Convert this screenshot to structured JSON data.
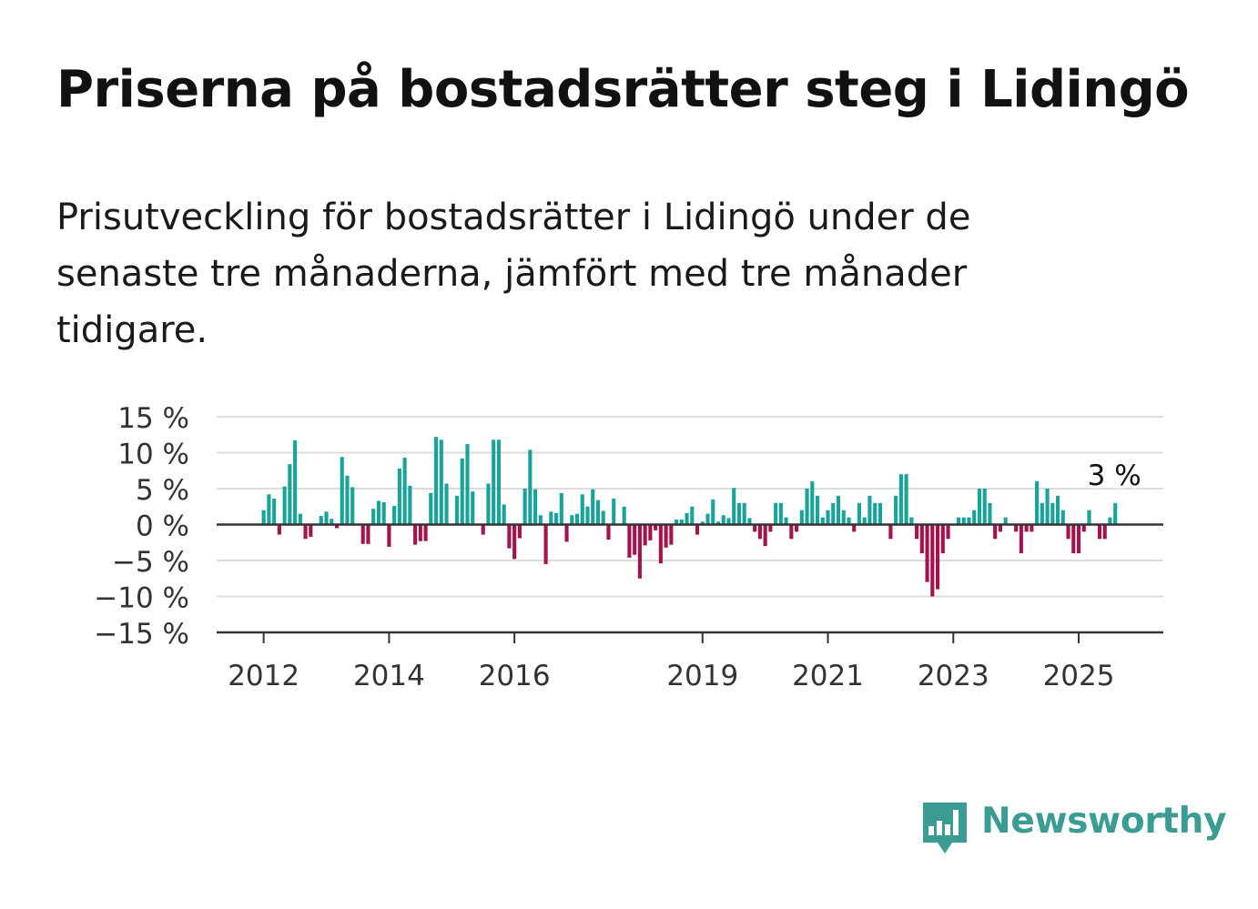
{
  "title": "Priserna på bostadsrätter steg i Lidingö",
  "subtitle": "Prisutveckling för bostadsrätter i Lidingö under de senaste tre månaderna, jämfört med tre månader tidigare.",
  "brand": {
    "name": "Newsworthy",
    "color": "#3b9c93"
  },
  "colors": {
    "positive": "#1aa39a",
    "negative": "#a3134d",
    "grid": "#dddddd",
    "axis": "#333333"
  },
  "chart_data": {
    "type": "bar",
    "y_tick_labels": [
      "15 %",
      "10 %",
      "5 %",
      "0 %",
      "−5 %",
      "−10 %",
      "−15 %"
    ],
    "y_ticks": [
      15,
      10,
      5,
      0,
      -5,
      -10,
      -15
    ],
    "ylim": [
      -15,
      15
    ],
    "x_tick_labels": [
      "2012",
      "2014",
      "2016",
      "2019",
      "2021",
      "2023",
      "2025"
    ],
    "x_ticks": [
      2012,
      2014,
      2016,
      2019,
      2021,
      2023,
      2025
    ],
    "xlim": [
      2011.25,
      2026.35
    ],
    "grid": true,
    "last_label": "3 %",
    "start_year": 2012,
    "months_per_bar": 1,
    "values": [
      2.0,
      4.2,
      3.6,
      -1.4,
      5.3,
      8.4,
      11.7,
      1.5,
      -2.0,
      -1.7,
      0,
      1.2,
      1.8,
      0.8,
      -0.5,
      9.4,
      6.8,
      5.2,
      0,
      -2.7,
      -2.7,
      2.2,
      3.3,
      3.1,
      -3.1,
      2.6,
      7.8,
      9.3,
      5.4,
      -2.8,
      -2.3,
      -2.3,
      4.4,
      12.2,
      11.8,
      5.7,
      0,
      4.0,
      9.2,
      11.2,
      4.6,
      0,
      -1.4,
      5.7,
      11.8,
      11.8,
      2.8,
      -3.3,
      -4.8,
      -1.9,
      5.0,
      10.4,
      4.9,
      1.3,
      -5.5,
      1.8,
      1.6,
      4.4,
      -2.4,
      1.3,
      1.5,
      4.2,
      2.5,
      4.9,
      3.4,
      1.9,
      -2.1,
      3.6,
      0,
      2.5,
      -4.6,
      -4.2,
      -7.5,
      -2.9,
      -2.2,
      -0.8,
      -5.4,
      -3.2,
      -2.8,
      0.7,
      0.7,
      1.6,
      2.5,
      -1.4,
      0.4,
      1.5,
      3.5,
      0.4,
      1.3,
      0.9,
      5.1,
      3.0,
      3.0,
      0.9,
      -1.0,
      -2.0,
      -3.0,
      -1.0,
      3.0,
      3.0,
      1.0,
      -2.0,
      -1.0,
      2.0,
      5.0,
      6.0,
      4.0,
      1.0,
      2.0,
      3.0,
      4.0,
      2.0,
      1.0,
      -1.0,
      3.0,
      1.0,
      4.0,
      3.0,
      3.0,
      0,
      -2.0,
      4.0,
      7.0,
      7.0,
      1.0,
      -2.0,
      -4.0,
      -8.0,
      -10.0,
      -9.0,
      -4.0,
      -2.0,
      0,
      1.0,
      1.0,
      1.0,
      2.0,
      5.0,
      5.0,
      3.0,
      -2.0,
      -1.0,
      1.0,
      0,
      -1.0,
      -4.0,
      -1.0,
      -1.0,
      6.0,
      3.0,
      5.0,
      3.0,
      4.0,
      2.0,
      -2.0,
      -4.0,
      -4.0,
      -1.0,
      2.0,
      0,
      -2.0,
      -2.0,
      1.0,
      3.0
    ]
  }
}
